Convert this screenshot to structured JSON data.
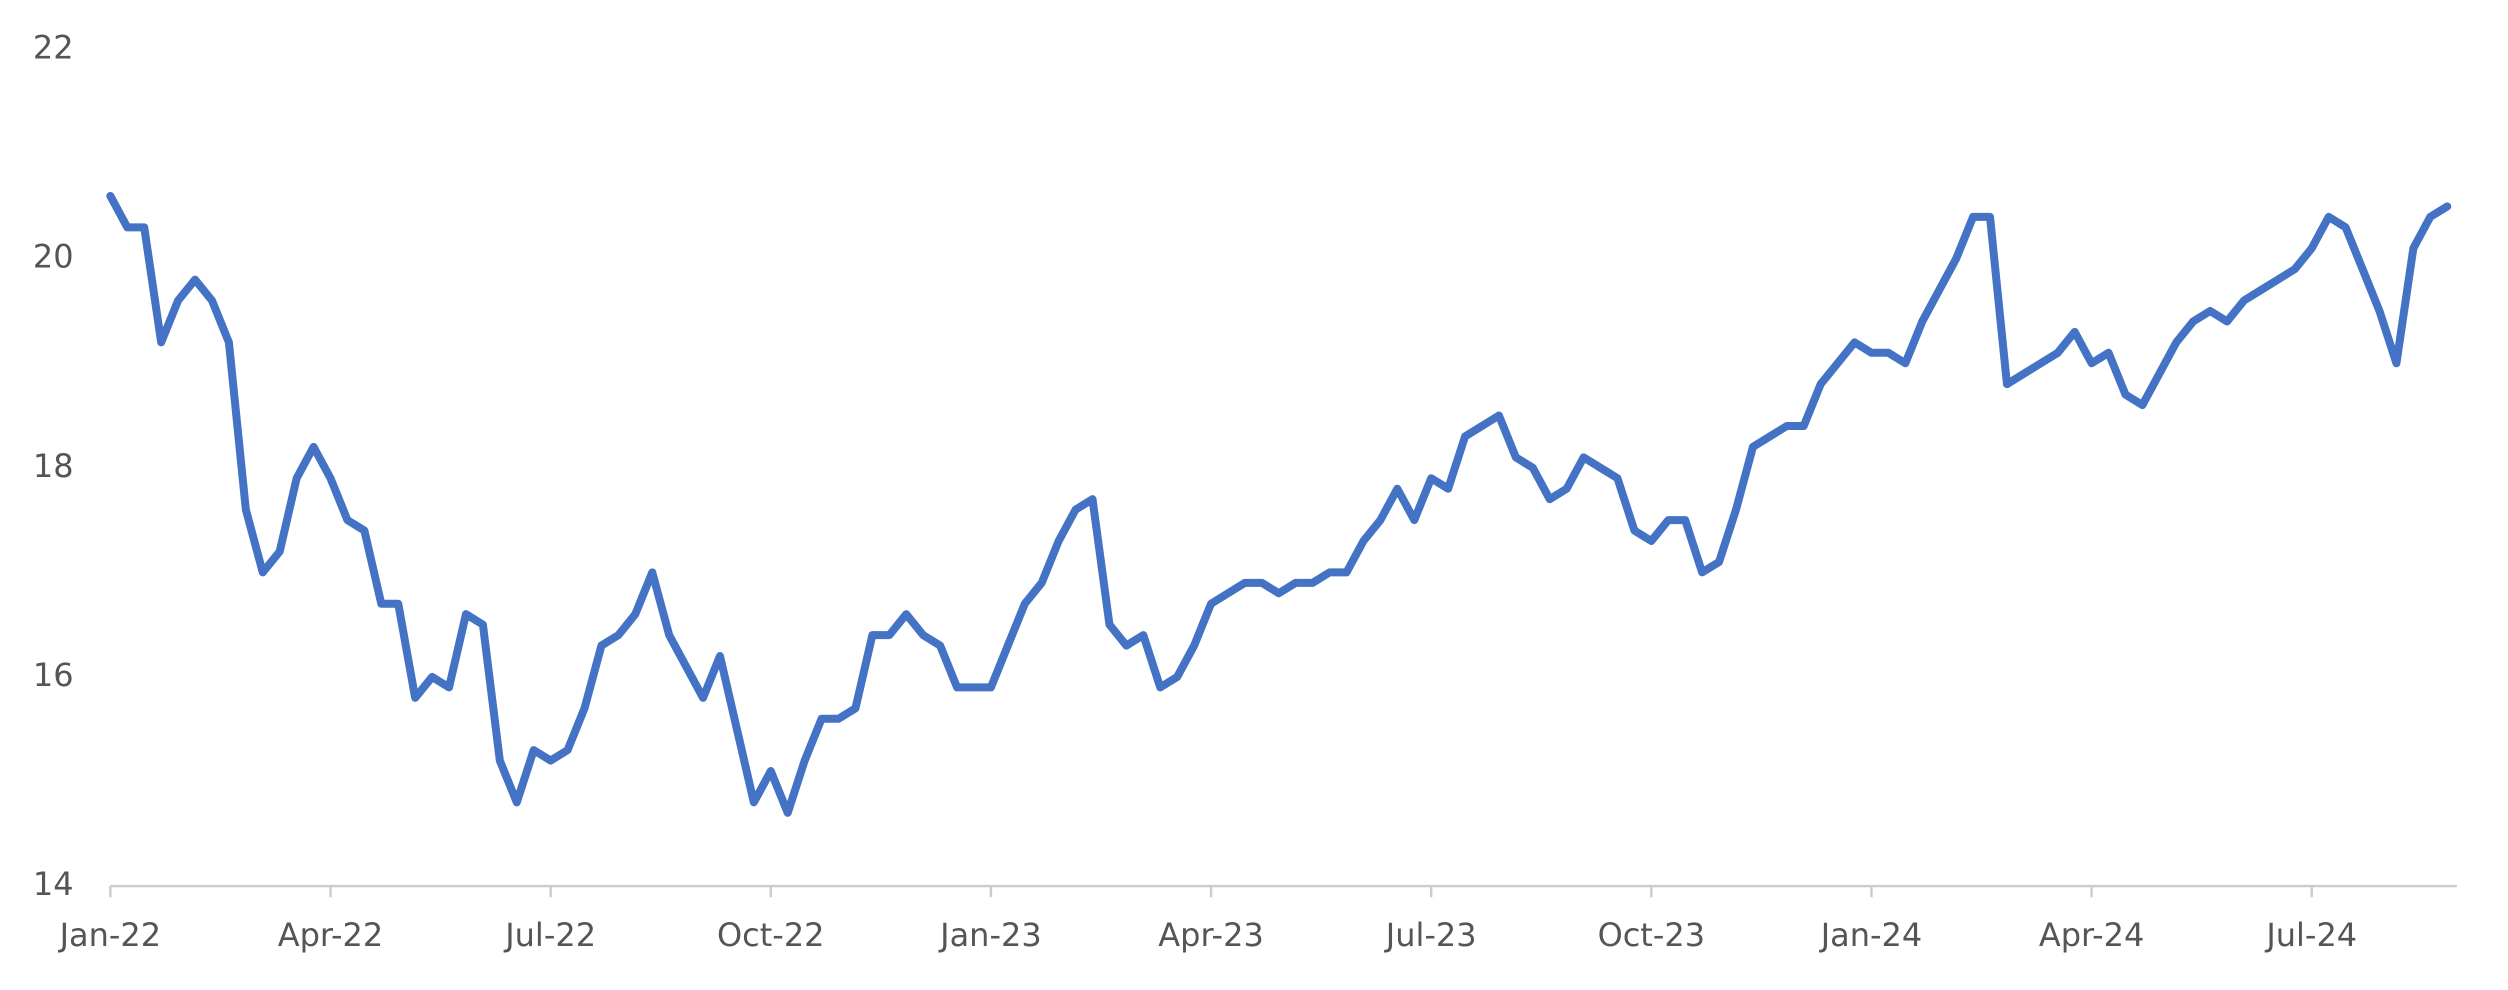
{
  "chart_data": {
    "type": "line",
    "color": "#4472c4",
    "categories": [
      "Jan-22",
      null,
      null,
      null,
      null,
      null,
      null,
      null,
      null,
      null,
      null,
      null,
      null,
      "Apr-22",
      null,
      null,
      null,
      null,
      null,
      null,
      null,
      null,
      null,
      null,
      null,
      null,
      "Jul-22",
      null,
      null,
      null,
      null,
      null,
      null,
      null,
      null,
      null,
      null,
      null,
      null,
      "Oct-22",
      null,
      null,
      null,
      null,
      null,
      null,
      null,
      null,
      null,
      null,
      null,
      null,
      "Jan-23",
      null,
      null,
      null,
      null,
      null,
      null,
      null,
      null,
      null,
      null,
      null,
      null,
      "Apr-23",
      null,
      null,
      null,
      null,
      null,
      null,
      null,
      null,
      null,
      null,
      null,
      null,
      "Jul-23",
      null,
      null,
      null,
      null,
      null,
      null,
      null,
      null,
      null,
      null,
      null,
      null,
      "Oct-23",
      null,
      null,
      null,
      null,
      null,
      null,
      null,
      null,
      null,
      null,
      null,
      null,
      "Jan-24",
      null,
      null,
      null,
      null,
      null,
      null,
      null,
      null,
      null,
      null,
      null,
      null,
      "Apr-24",
      null,
      null,
      null,
      null,
      null,
      null,
      null,
      null,
      null,
      null,
      null,
      null,
      "Jul-24",
      null,
      null,
      null,
      null,
      null,
      null,
      null,
      null
    ],
    "values": [
      20.6,
      20.3,
      20.3,
      19.2,
      19.6,
      19.8,
      19.6,
      19.2,
      17.6,
      17.0,
      17.2,
      17.9,
      18.2,
      17.9,
      17.5,
      17.4,
      16.7,
      16.7,
      15.8,
      16.0,
      15.9,
      16.6,
      16.5,
      15.2,
      14.8,
      15.3,
      15.2,
      15.3,
      15.7,
      16.3,
      16.4,
      16.6,
      17.0,
      16.4,
      16.1,
      15.8,
      16.2,
      15.5,
      14.8,
      15.1,
      14.7,
      15.2,
      15.6,
      15.6,
      15.7,
      16.4,
      16.4,
      16.6,
      16.4,
      16.3,
      15.9,
      15.9,
      15.9,
      16.3,
      16.7,
      16.9,
      17.3,
      17.6,
      17.7,
      16.5,
      16.3,
      16.4,
      15.9,
      16.0,
      16.3,
      16.7,
      16.8,
      16.9,
      16.9,
      16.8,
      16.9,
      16.9,
      17.0,
      17.0,
      17.3,
      17.5,
      17.8,
      17.5,
      17.9,
      17.8,
      18.3,
      18.4,
      18.5,
      18.1,
      18.0,
      17.7,
      17.8,
      18.1,
      18.0,
      17.9,
      17.4,
      17.3,
      17.5,
      17.5,
      17.0,
      17.1,
      17.6,
      18.2,
      18.3,
      18.4,
      18.4,
      18.8,
      19.0,
      19.2,
      19.1,
      19.1,
      19.0,
      19.4,
      19.7,
      20.0,
      20.4,
      20.4,
      18.8,
      18.9,
      19.0,
      19.1,
      19.3,
      19.0,
      19.1,
      18.7,
      18.6,
      18.9,
      19.2,
      19.4,
      19.5,
      19.4,
      19.6,
      19.7,
      19.8,
      19.9,
      20.1,
      20.4,
      20.3,
      19.9,
      19.5,
      19.0,
      20.1,
      20.4,
      20.5
    ],
    "ylim": [
      14,
      22
    ],
    "yticks": [
      14,
      16,
      18,
      20,
      22
    ],
    "grid": false
  }
}
